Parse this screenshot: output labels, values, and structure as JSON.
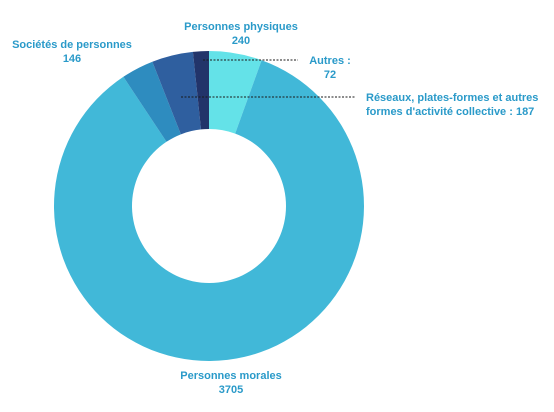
{
  "chart_data": {
    "type": "pie",
    "donut": true,
    "title": "",
    "slices": [
      {
        "name": "Personnes physiques",
        "value": 240,
        "display": "240",
        "color": "#64e2e8"
      },
      {
        "name": "Personnes morales",
        "value": 3705,
        "display": "3705",
        "color": "#41b8d8"
      },
      {
        "name": "Sociétés de personnes",
        "value": 146,
        "display": "146",
        "color": "#2e8cbf"
      },
      {
        "name": "Réseaux, plates-formes et autres formes d'activité collective",
        "value": 187,
        "display": "187",
        "color": "#2f5f9f"
      },
      {
        "name": "Autres",
        "value": 72,
        "display": "72",
        "color": "#22346a"
      }
    ]
  },
  "labels": {
    "physiques": {
      "line1": "Personnes physiques",
      "line2": "240"
    },
    "morales": {
      "line1": "Personnes morales",
      "line2": "3705"
    },
    "societes": {
      "line1": "Sociétés de personnes",
      "line2": "146"
    },
    "autres": {
      "line1": "Autres :",
      "line2": "72"
    },
    "reseaux": {
      "line1": "Réseaux, plates-formes et autres",
      "line2": "formes d'activité collective : 187"
    }
  },
  "colors": {
    "label_text": "#2a9ac9",
    "leader_line": "#1a1a1a"
  }
}
